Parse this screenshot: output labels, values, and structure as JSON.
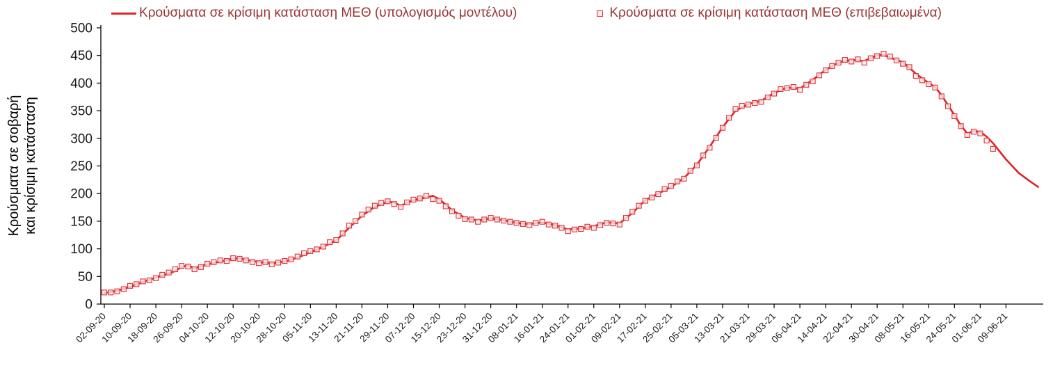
{
  "chart_data": {
    "type": "line",
    "title": "",
    "xlabel": "",
    "ylabel": "Κρούσματα σε σοβαρή και κρίσιμη κατάσταση",
    "ylabel_lines": [
      "Κρούσματα σε σοβαρή",
      "και κρίσιμη κατάσταση"
    ],
    "ylim": [
      0,
      500
    ],
    "y_ticks": [
      0,
      50,
      100,
      150,
      200,
      250,
      300,
      350,
      400,
      450,
      500
    ],
    "x_tick_step_days": 8,
    "x_tick_labels": [
      "02-09-20",
      "10-09-20",
      "18-09-20",
      "26-09-20",
      "04-10-20",
      "12-10-20",
      "20-10-20",
      "28-10-20",
      "05-11-20",
      "13-11-20",
      "21-11-20",
      "29-11-20",
      "07-12-20",
      "15-12-20",
      "23-12-20",
      "31-12-20",
      "08-01-21",
      "16-01-21",
      "24-01-21",
      "01-02-21",
      "09-02-21",
      "17-02-21",
      "25-02-21",
      "05-03-21",
      "13-03-21",
      "21-03-21",
      "29-03-21",
      "06-04-21",
      "14-04-21",
      "22-04-21",
      "30-04-21",
      "08-05-21",
      "16-05-21",
      "24-05-21",
      "01-06-21",
      "09-06-21"
    ],
    "grid": false,
    "legend_position": "top",
    "colors": {
      "line": "#e32227",
      "marker_edge": "#d93036",
      "marker_fill": "#fbe7e7",
      "legend_text": "#993333",
      "axis_text": "#1a1a1a",
      "axis_line": "#000000"
    },
    "series": [
      {
        "name": "Κρούσματα σε κρίσιμη κατάσταση ΜΕΘ (υπολογισμός μοντέλου)",
        "type": "line",
        "color": "#e32227",
        "points": [
          [
            0,
            20
          ],
          [
            4,
            24
          ],
          [
            8,
            31
          ],
          [
            12,
            40
          ],
          [
            16,
            48
          ],
          [
            20,
            55
          ],
          [
            22,
            60
          ],
          [
            24,
            67
          ],
          [
            26,
            70
          ],
          [
            28,
            65
          ],
          [
            32,
            72
          ],
          [
            36,
            77
          ],
          [
            40,
            82
          ],
          [
            42,
            83
          ],
          [
            44,
            80
          ],
          [
            48,
            76
          ],
          [
            52,
            74
          ],
          [
            56,
            77
          ],
          [
            60,
            84
          ],
          [
            64,
            94
          ],
          [
            68,
            104
          ],
          [
            72,
            115
          ],
          [
            76,
            138
          ],
          [
            80,
            160
          ],
          [
            84,
            176
          ],
          [
            88,
            185
          ],
          [
            90,
            184
          ],
          [
            92,
            178
          ],
          [
            96,
            188
          ],
          [
            100,
            193
          ],
          [
            102,
            196
          ],
          [
            104,
            190
          ],
          [
            108,
            170
          ],
          [
            112,
            156
          ],
          [
            116,
            151
          ],
          [
            120,
            155
          ],
          [
            124,
            152
          ],
          [
            128,
            147
          ],
          [
            132,
            145
          ],
          [
            136,
            148
          ],
          [
            140,
            143
          ],
          [
            144,
            135
          ],
          [
            148,
            137
          ],
          [
            152,
            141
          ],
          [
            156,
            148
          ],
          [
            160,
            146
          ],
          [
            164,
            165
          ],
          [
            168,
            188
          ],
          [
            172,
            200
          ],
          [
            176,
            212
          ],
          [
            180,
            228
          ],
          [
            184,
            252
          ],
          [
            188,
            285
          ],
          [
            192,
            320
          ],
          [
            196,
            350
          ],
          [
            200,
            362
          ],
          [
            204,
            368
          ],
          [
            208,
            382
          ],
          [
            212,
            392
          ],
          [
            216,
            390
          ],
          [
            220,
            406
          ],
          [
            224,
            424
          ],
          [
            228,
            437
          ],
          [
            232,
            442
          ],
          [
            236,
            440
          ],
          [
            240,
            450
          ],
          [
            242,
            451
          ],
          [
            244,
            446
          ],
          [
            248,
            438
          ],
          [
            252,
            417
          ],
          [
            256,
            400
          ],
          [
            258,
            393
          ],
          [
            260,
            378
          ],
          [
            262,
            360
          ],
          [
            264,
            342
          ],
          [
            266,
            323
          ],
          [
            268,
            309
          ],
          [
            270,
            313
          ],
          [
            272,
            312
          ],
          [
            274,
            303
          ],
          [
            276,
            291
          ],
          [
            280,
            262
          ],
          [
            284,
            237
          ],
          [
            288,
            220
          ],
          [
            290,
            212
          ]
        ]
      },
      {
        "name": "Κρούσματα σε κρίσιμη κατάσταση ΜΕΘ (επιβεβαιωμένα)",
        "type": "scatter-square",
        "color": "#d93036",
        "fill": "#fbe7e7",
        "points": [
          [
            0,
            21
          ],
          [
            2,
            21
          ],
          [
            4,
            23
          ],
          [
            6,
            27
          ],
          [
            8,
            33
          ],
          [
            10,
            36
          ],
          [
            12,
            41
          ],
          [
            14,
            43
          ],
          [
            16,
            47
          ],
          [
            18,
            53
          ],
          [
            20,
            57
          ],
          [
            22,
            63
          ],
          [
            24,
            69
          ],
          [
            26,
            68
          ],
          [
            28,
            63
          ],
          [
            30,
            67
          ],
          [
            32,
            73
          ],
          [
            34,
            76
          ],
          [
            36,
            79
          ],
          [
            38,
            78
          ],
          [
            40,
            83
          ],
          [
            42,
            82
          ],
          [
            44,
            79
          ],
          [
            46,
            76
          ],
          [
            48,
            74
          ],
          [
            50,
            76
          ],
          [
            52,
            72
          ],
          [
            54,
            75
          ],
          [
            56,
            78
          ],
          [
            58,
            81
          ],
          [
            60,
            86
          ],
          [
            62,
            92
          ],
          [
            64,
            96
          ],
          [
            66,
            99
          ],
          [
            68,
            104
          ],
          [
            70,
            112
          ],
          [
            72,
            116
          ],
          [
            74,
            128
          ],
          [
            76,
            142
          ],
          [
            78,
            150
          ],
          [
            80,
            162
          ],
          [
            82,
            171
          ],
          [
            84,
            178
          ],
          [
            86,
            183
          ],
          [
            88,
            186
          ],
          [
            90,
            181
          ],
          [
            92,
            176
          ],
          [
            94,
            184
          ],
          [
            96,
            189
          ],
          [
            98,
            191
          ],
          [
            100,
            196
          ],
          [
            102,
            190
          ],
          [
            104,
            187
          ],
          [
            106,
            177
          ],
          [
            108,
            168
          ],
          [
            110,
            160
          ],
          [
            112,
            154
          ],
          [
            114,
            153
          ],
          [
            116,
            149
          ],
          [
            118,
            153
          ],
          [
            120,
            156
          ],
          [
            122,
            153
          ],
          [
            124,
            151
          ],
          [
            126,
            149
          ],
          [
            128,
            147
          ],
          [
            130,
            145
          ],
          [
            132,
            143
          ],
          [
            134,
            147
          ],
          [
            136,
            149
          ],
          [
            138,
            144
          ],
          [
            140,
            142
          ],
          [
            142,
            138
          ],
          [
            144,
            132
          ],
          [
            146,
            135
          ],
          [
            148,
            136
          ],
          [
            150,
            140
          ],
          [
            152,
            138
          ],
          [
            154,
            143
          ],
          [
            156,
            147
          ],
          [
            158,
            146
          ],
          [
            160,
            144
          ],
          [
            162,
            156
          ],
          [
            164,
            167
          ],
          [
            166,
            178
          ],
          [
            168,
            187
          ],
          [
            170,
            193
          ],
          [
            172,
            199
          ],
          [
            174,
            208
          ],
          [
            176,
            214
          ],
          [
            178,
            222
          ],
          [
            180,
            227
          ],
          [
            182,
            241
          ],
          [
            184,
            251
          ],
          [
            186,
            269
          ],
          [
            188,
            283
          ],
          [
            190,
            301
          ],
          [
            192,
            319
          ],
          [
            194,
            337
          ],
          [
            196,
            353
          ],
          [
            198,
            359
          ],
          [
            200,
            361
          ],
          [
            202,
            364
          ],
          [
            204,
            366
          ],
          [
            206,
            374
          ],
          [
            208,
            381
          ],
          [
            210,
            389
          ],
          [
            212,
            391
          ],
          [
            214,
            393
          ],
          [
            216,
            388
          ],
          [
            218,
            397
          ],
          [
            220,
            403
          ],
          [
            222,
            414
          ],
          [
            224,
            423
          ],
          [
            226,
            431
          ],
          [
            228,
            437
          ],
          [
            230,
            442
          ],
          [
            232,
            439
          ],
          [
            234,
            443
          ],
          [
            236,
            437
          ],
          [
            238,
            445
          ],
          [
            240,
            449
          ],
          [
            242,
            453
          ],
          [
            244,
            448
          ],
          [
            246,
            441
          ],
          [
            248,
            435
          ],
          [
            250,
            429
          ],
          [
            252,
            413
          ],
          [
            254,
            405
          ],
          [
            256,
            398
          ],
          [
            258,
            392
          ],
          [
            260,
            376
          ],
          [
            262,
            358
          ],
          [
            264,
            340
          ],
          [
            266,
            322
          ],
          [
            268,
            306
          ],
          [
            270,
            312
          ],
          [
            272,
            309
          ],
          [
            274,
            296
          ],
          [
            276,
            281
          ]
        ]
      }
    ]
  }
}
